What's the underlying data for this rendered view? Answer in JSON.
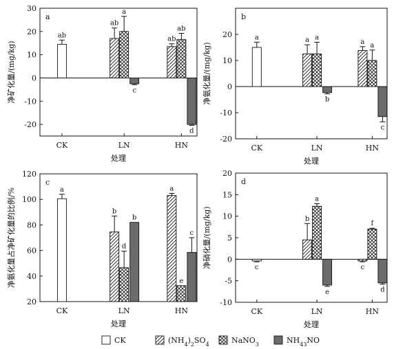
{
  "chart_data": [
    {
      "panel": "a",
      "type": "bar",
      "ylabel": "净矿化量/(mg/kg)",
      "xlabel": "处理",
      "categories": [
        "CK",
        "LN",
        "HN"
      ],
      "ylim": [
        -25,
        30
      ],
      "yticks": [
        "-20",
        "-10",
        "0",
        "10",
        "20",
        "30"
      ],
      "series": [
        {
          "name": "CK",
          "values": [
            14.5,
            null,
            null
          ],
          "errors": [
            1.8,
            null,
            null
          ],
          "letters": [
            "ab",
            null,
            null
          ]
        },
        {
          "name": "(NH4)2SO4",
          "values": [
            null,
            17,
            13.5
          ],
          "errors": [
            null,
            4.5,
            1.2
          ],
          "letters": [
            null,
            "ab",
            "ab"
          ]
        },
        {
          "name": "NaNO3",
          "values": [
            null,
            20,
            16.5
          ],
          "errors": [
            null,
            6.5,
            2.7
          ],
          "letters": [
            null,
            "a",
            "ab"
          ]
        },
        {
          "name": "NH4NO3",
          "values": [
            null,
            -2.5,
            -20
          ],
          "errors": [
            null,
            0.4,
            0.4
          ],
          "letters": [
            null,
            "c",
            "d"
          ]
        }
      ]
    },
    {
      "panel": "b",
      "type": "bar",
      "ylabel": "净氨化量/(mg/kg)",
      "xlabel": "处理",
      "categories": [
        "CK",
        "LN",
        "HN"
      ],
      "ylim": [
        -20,
        30
      ],
      "yticks": [
        "-20",
        "-10",
        "0",
        "10",
        "20"
      ],
      "series": [
        {
          "name": "CK",
          "values": [
            15,
            null,
            null
          ],
          "errors": [
            2,
            null,
            null
          ],
          "letters": [
            "a",
            null,
            null
          ]
        },
        {
          "name": "(NH4)2SO4",
          "values": [
            null,
            12.5,
            13.8
          ],
          "errors": [
            null,
            3.5,
            1.5
          ],
          "letters": [
            null,
            "a",
            "a"
          ]
        },
        {
          "name": "NaNO3",
          "values": [
            null,
            12.5,
            10
          ],
          "errors": [
            null,
            4.5,
            4
          ],
          "letters": [
            null,
            "a",
            "a"
          ]
        },
        {
          "name": "NH4NO3",
          "values": [
            null,
            -2.3,
            -11.5
          ],
          "errors": [
            null,
            0.5,
            2
          ],
          "letters": [
            null,
            "b",
            "c"
          ]
        }
      ]
    },
    {
      "panel": "c",
      "type": "bar",
      "ylabel": "净氨化量占净矿化量的比例/%",
      "xlabel": "处理",
      "categories": [
        "CK",
        "LN",
        "HN"
      ],
      "ylim": [
        20,
        120
      ],
      "yticks": [
        "20",
        "40",
        "60",
        "80",
        "100",
        "120"
      ],
      "series": [
        {
          "name": "CK",
          "values": [
            100.5,
            null,
            null
          ],
          "errors": [
            3.5,
            null,
            null
          ],
          "letters": [
            "a",
            null,
            null
          ]
        },
        {
          "name": "(NH4)2SO4",
          "values": [
            null,
            74.5,
            103
          ],
          "errors": [
            null,
            12.5,
            1.7
          ],
          "letters": [
            null,
            "b",
            "a"
          ]
        },
        {
          "name": "NaNO3",
          "values": [
            null,
            46.5,
            32.5
          ],
          "errors": [
            null,
            13,
            0
          ],
          "letters": [
            null,
            "d",
            "e"
          ]
        },
        {
          "name": "NH4NO3",
          "values": [
            null,
            82,
            58.5
          ],
          "errors": [
            null,
            0,
            11.5
          ],
          "letters": [
            null,
            "b",
            "c"
          ]
        }
      ]
    },
    {
      "panel": "d",
      "type": "bar",
      "ylabel": "净硝化量/(mg/kg)",
      "xlabel": "处理",
      "categories": [
        "CK",
        "LN",
        "HN"
      ],
      "ylim": [
        -10,
        20
      ],
      "yticks": [
        "-10",
        "-5",
        "0",
        "5",
        "10",
        "15",
        "20"
      ],
      "series": [
        {
          "name": "CK",
          "values": [
            -0.4,
            null,
            null
          ],
          "errors": [
            0.2,
            null,
            null
          ],
          "letters": [
            "c",
            null,
            null
          ]
        },
        {
          "name": "(NH4)2SO4",
          "values": [
            null,
            4.5,
            -0.4
          ],
          "errors": [
            null,
            3.8,
            0.2
          ],
          "letters": [
            null,
            "b",
            "c"
          ]
        },
        {
          "name": "NaNO3",
          "values": [
            null,
            12.3,
            7
          ],
          "errors": [
            null,
            0.6,
            0.2
          ],
          "letters": [
            null,
            "a",
            "f"
          ]
        },
        {
          "name": "NH4NO3",
          "values": [
            null,
            -6,
            -5.5
          ],
          "errors": [
            null,
            0.3,
            0.3
          ],
          "letters": [
            null,
            "e",
            "d"
          ]
        }
      ]
    }
  ],
  "legend": {
    "placement": "bottom",
    "items": [
      {
        "pattern": "blank",
        "label": "CK"
      },
      {
        "pattern": "hatch",
        "label": "(NH",
        "sub1": "4",
        "mid": ")",
        "sub2": "2",
        "tail": "SO",
        "sub3": "4"
      },
      {
        "pattern": "cross",
        "label": "NaNO",
        "sub1": "3"
      },
      {
        "pattern": "solid",
        "label": "NH",
        "sub1": "4",
        "tail": "NO",
        "sub2": "3"
      }
    ]
  },
  "colors": {
    "solid_fill": "#6b6b6b",
    "outline": "#111111"
  }
}
